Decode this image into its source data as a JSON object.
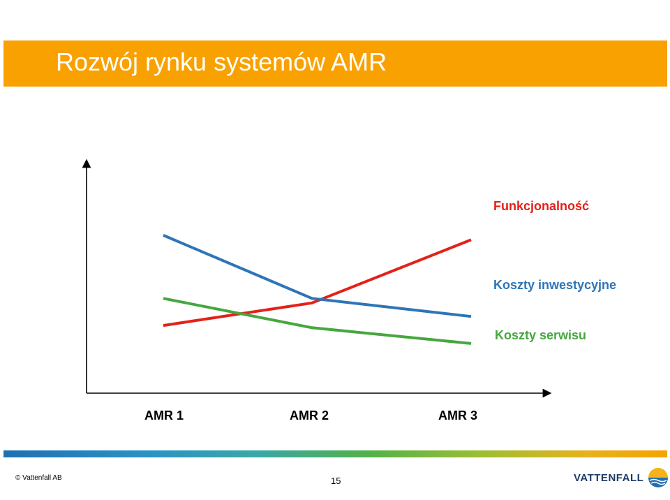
{
  "title": "Rozwój rynku systemów AMR",
  "chart_data": {
    "type": "line",
    "categories": [
      "AMR 1",
      "AMR 2",
      "AMR 3"
    ],
    "ylim": [
      0,
      100
    ],
    "series": [
      {
        "name": "Funkcjonalność",
        "values": [
          30,
          40,
          68
        ],
        "color": "#e32219"
      },
      {
        "name": "Koszty inwestycyjne",
        "values": [
          70,
          42,
          34
        ],
        "color": "#2e75b6"
      },
      {
        "name": "Koszty serwisu",
        "values": [
          42,
          29,
          22
        ],
        "color": "#46a73e"
      }
    ]
  },
  "footer": {
    "copyright": "© Vattenfall AB",
    "page_number": "15",
    "logo_text": "VATTENFALL"
  }
}
